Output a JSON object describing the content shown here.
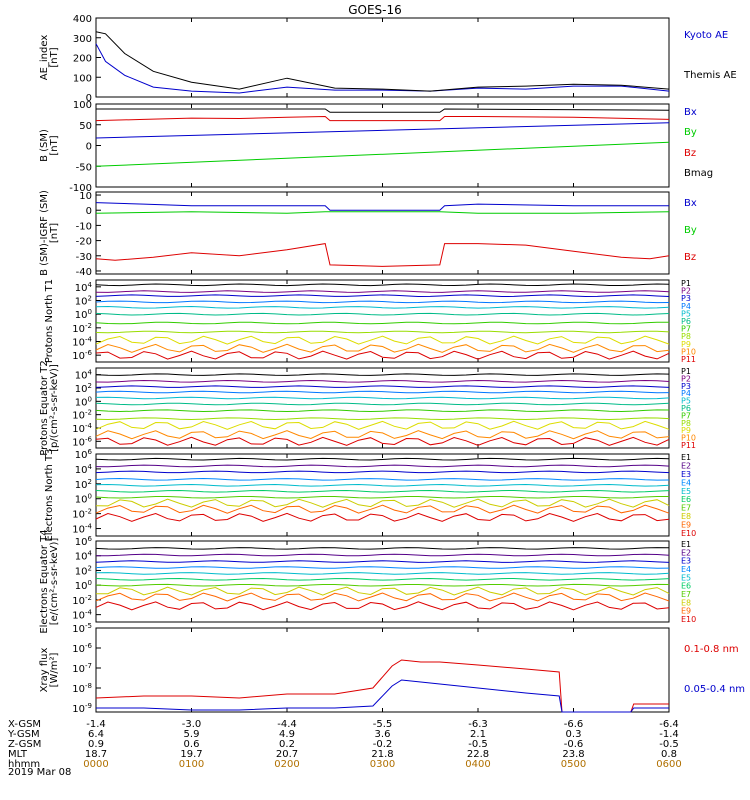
{
  "title": "GOES-16",
  "x_ticks": [
    "0000",
    "0100",
    "0200",
    "0300",
    "0400",
    "0500",
    "0600"
  ],
  "date_label": "2019 Mar 08",
  "ephemeris": {
    "rows": [
      {
        "label": "X-GSM",
        "values": [
          "-1.4",
          "-3.0",
          "-4.4",
          "-5.5",
          "-6.3",
          "-6.6",
          "-6.4"
        ]
      },
      {
        "label": "Y-GSM",
        "values": [
          "6.4",
          "5.9",
          "4.9",
          "3.6",
          "2.1",
          "0.3",
          "-1.4"
        ]
      },
      {
        "label": "Z-GSM",
        "values": [
          "0.9",
          "0.6",
          "0.2",
          "-0.2",
          "-0.5",
          "-0.6",
          "-0.5"
        ]
      },
      {
        "label": "MLT",
        "values": [
          "18.7",
          "19.7",
          "20.7",
          "21.8",
          "22.8",
          "23.8",
          "0.8"
        ]
      },
      {
        "label": "hhmm",
        "values": [
          "0000",
          "0100",
          "0200",
          "0300",
          "0400",
          "0500",
          "0600"
        ]
      }
    ]
  },
  "colors": {
    "P1": "#000000",
    "P2": "#7a0080",
    "P3": "#0000cc",
    "P4": "#0077ff",
    "P5": "#00bbcc",
    "P6": "#00bb88",
    "P7": "#33cc00",
    "P8": "#99dd00",
    "P9": "#dddd00",
    "P10": "#ff8800",
    "P11": "#dd0000",
    "E1": "#000000",
    "E2": "#550088",
    "E3": "#0000cc",
    "E4": "#0088ff",
    "E5": "#00bbcc",
    "E6": "#00cc66",
    "E7": "#55cc00",
    "E8": "#cccc00",
    "E9": "#ff6600",
    "E10": "#dd0000"
  },
  "chart_data": [
    {
      "type": "line",
      "panel": "ae",
      "ylabel": "AE_index [nT]",
      "ylim": [
        0,
        400
      ],
      "yticks": [
        "400",
        "300",
        "200",
        "100",
        "0"
      ],
      "series": [
        {
          "name": "Kyoto AE",
          "color": "#0000cc",
          "x": [
            0,
            0.1,
            0.3,
            0.6,
            1.0,
            1.5,
            2.0,
            2.5,
            3.0,
            3.5,
            4.0,
            4.5,
            5.0,
            5.5,
            6.0
          ],
          "y": [
            270,
            180,
            110,
            50,
            30,
            20,
            50,
            35,
            35,
            30,
            45,
            40,
            55,
            55,
            30
          ]
        },
        {
          "name": "Themis AE",
          "color": "#000000",
          "x": [
            0,
            0.1,
            0.3,
            0.6,
            1.0,
            1.5,
            2.0,
            2.5,
            3.0,
            3.5,
            4.0,
            4.5,
            5.0,
            5.5,
            6.0
          ],
          "y": [
            330,
            320,
            220,
            130,
            75,
            40,
            95,
            45,
            40,
            30,
            50,
            55,
            65,
            60,
            40
          ]
        }
      ]
    },
    {
      "type": "line",
      "panel": "bsm",
      "ylabel": "B (SM) [nT]",
      "ylim": [
        -100,
        100
      ],
      "yticks": [
        "100",
        "50",
        "0",
        "-50",
        "-100"
      ],
      "series": [
        {
          "name": "Bx",
          "color": "#0000cc",
          "x": [
            0,
            6
          ],
          "y": [
            18,
            55
          ]
        },
        {
          "name": "By",
          "color": "#00cc00",
          "x": [
            0,
            6
          ],
          "y": [
            -50,
            8
          ]
        },
        {
          "name": "Bz",
          "color": "#dd0000",
          "x": [
            0,
            0.5,
            1,
            1.5,
            2,
            2.4,
            2.45,
            3.6,
            3.65,
            4,
            5,
            6
          ],
          "y": [
            60,
            63,
            66,
            65,
            68,
            70,
            60,
            60,
            70,
            70,
            68,
            63
          ]
        },
        {
          "name": "Bmag",
          "color": "#000000",
          "x": [
            0,
            2.4,
            2.45,
            3.6,
            3.65,
            6
          ],
          "y": [
            88,
            88,
            80,
            80,
            88,
            85
          ]
        }
      ]
    },
    {
      "type": "line",
      "panel": "bdiff",
      "ylabel": "B (SM)-IGRF (SM) [nT]",
      "ylim": [
        -42,
        12
      ],
      "yticks": [
        "10",
        "0",
        "-10",
        "-20",
        "-30",
        "-40"
      ],
      "series": [
        {
          "name": "Bx",
          "color": "#0000cc",
          "x": [
            0,
            0.5,
            1,
            2,
            2.4,
            2.45,
            3.6,
            3.65,
            4,
            5,
            6
          ],
          "y": [
            5,
            4,
            3,
            3,
            3,
            0,
            0,
            3,
            4,
            3,
            3
          ]
        },
        {
          "name": "By",
          "color": "#00cc00",
          "x": [
            0,
            1,
            2,
            2.4,
            3.6,
            4,
            5,
            6
          ],
          "y": [
            -2,
            -1,
            -2,
            -1,
            -1,
            -2,
            -2,
            -1
          ]
        },
        {
          "name": "Bz",
          "color": "#dd0000",
          "x": [
            0,
            0.2,
            0.6,
            1,
            1.5,
            2,
            2.4,
            2.45,
            3.0,
            3.6,
            3.65,
            4,
            4.5,
            5,
            5.5,
            5.8,
            6
          ],
          "y": [
            -32,
            -33,
            -31,
            -28,
            -30,
            -26,
            -22,
            -36,
            -37,
            -36,
            -22,
            -22,
            -23,
            -27,
            -31,
            -32,
            -30
          ]
        }
      ]
    },
    {
      "type": "line",
      "panel": "protons_t1",
      "ylabel": "Protons North T1",
      "log": true,
      "ylim": [
        -7,
        5
      ],
      "yticks": [
        "10^4",
        "10^2",
        "10^0",
        "10^-2",
        "10^-4",
        "10^-6"
      ],
      "series": [
        {
          "name": "P1",
          "log_level": 4.3
        },
        {
          "name": "P2",
          "log_level": 3.3
        },
        {
          "name": "P3",
          "log_level": 2.7
        },
        {
          "name": "P4",
          "log_level": 1.8
        },
        {
          "name": "P5",
          "log_level": 1.0
        },
        {
          "name": "P6",
          "log_level": 0.0
        },
        {
          "name": "P7",
          "log_level": -1.3
        },
        {
          "name": "P8",
          "log_level": -2.6
        },
        {
          "name": "P9",
          "log_level": -3.8
        },
        {
          "name": "P10",
          "log_level": -5.0
        },
        {
          "name": "P11",
          "log_level": -6.0
        }
      ]
    },
    {
      "type": "line",
      "panel": "protons_t2",
      "ylabel": "Protons Equator T2 [p/(cm²-s-sr-keV)]",
      "log": true,
      "ylim": [
        -7,
        5
      ],
      "yticks": [
        "10^4",
        "10^2",
        "10^0",
        "10^-2",
        "10^-4",
        "10^-6"
      ],
      "series": [
        {
          "name": "P1",
          "log_level": 4.0
        },
        {
          "name": "P2",
          "log_level": 3.0
        },
        {
          "name": "P3",
          "log_level": 2.2
        },
        {
          "name": "P4",
          "log_level": 1.4
        },
        {
          "name": "P5",
          "log_level": 0.5
        },
        {
          "name": "P6",
          "log_level": -0.4
        },
        {
          "name": "P7",
          "log_level": -1.4
        },
        {
          "name": "P8",
          "log_level": -2.6
        },
        {
          "name": "P9",
          "log_level": -3.6
        },
        {
          "name": "P10",
          "log_level": -5.0
        },
        {
          "name": "P11",
          "log_level": -6.0
        }
      ]
    },
    {
      "type": "line",
      "panel": "electrons_t3",
      "ylabel": "Electrons North T3",
      "log": true,
      "ylim": [
        -5,
        6
      ],
      "yticks": [
        "10^6",
        "10^4",
        "10^2",
        "10^0",
        "10^-2",
        "10^-4"
      ],
      "series": [
        {
          "name": "E1",
          "log_level": 5.3
        },
        {
          "name": "E2",
          "log_level": 4.4
        },
        {
          "name": "E3",
          "log_level": 3.6
        },
        {
          "name": "E4",
          "log_level": 2.6
        },
        {
          "name": "E5",
          "log_level": 1.8
        },
        {
          "name": "E6",
          "log_level": 1.0
        },
        {
          "name": "E7",
          "log_level": 0.2
        },
        {
          "name": "E8",
          "log_level": -0.6
        },
        {
          "name": "E9",
          "log_level": -1.4
        },
        {
          "name": "E10",
          "log_level": -2.5
        }
      ]
    },
    {
      "type": "line",
      "panel": "electrons_t4",
      "ylabel": "Electrons Equator T4 [e/(cm²-s-sr-keV)]",
      "log": true,
      "ylim": [
        -5,
        6
      ],
      "yticks": [
        "10^6",
        "10^4",
        "10^2",
        "10^0",
        "10^-2",
        "10^-4"
      ],
      "series": [
        {
          "name": "E1",
          "log_level": 5.0
        },
        {
          "name": "E2",
          "log_level": 4.1
        },
        {
          "name": "E3",
          "log_level": 3.2
        },
        {
          "name": "E4",
          "log_level": 2.4
        },
        {
          "name": "E5",
          "log_level": 1.6
        },
        {
          "name": "E6",
          "log_level": 0.8
        },
        {
          "name": "E7",
          "log_level": 0.0
        },
        {
          "name": "E8",
          "log_level": -0.8
        },
        {
          "name": "E9",
          "log_level": -1.6
        },
        {
          "name": "E10",
          "log_level": -2.8
        }
      ]
    },
    {
      "type": "line",
      "panel": "xray",
      "ylabel": "Xray flux [W/m²]",
      "log": true,
      "ylim": [
        -9.2,
        -5
      ],
      "yticks": [
        "10^-5",
        "10^-6",
        "10^-7",
        "10^-8",
        "10^-9"
      ],
      "series": [
        {
          "name": "0.1-0.8 nm",
          "color": "#dd0000",
          "x": [
            0,
            0.5,
            1,
            1.5,
            2,
            2.5,
            2.9,
            3.1,
            3.2,
            3.4,
            3.6,
            4.0,
            4.5,
            4.85,
            4.88,
            5.6,
            5.63,
            6
          ],
          "y": [
            -8.5,
            -8.4,
            -8.4,
            -8.5,
            -8.3,
            -8.3,
            -8.0,
            -6.9,
            -6.6,
            -6.7,
            -6.7,
            -6.85,
            -7.05,
            -7.2,
            -9.2,
            -9.2,
            -8.8,
            -8.8
          ]
        },
        {
          "name": "0.05-0.4 nm",
          "color": "#0000cc",
          "x": [
            0,
            0.5,
            1,
            1.5,
            2,
            2.5,
            2.9,
            3.1,
            3.2,
            3.4,
            3.6,
            4.0,
            4.5,
            4.85,
            4.88,
            5.6,
            5.63,
            6
          ],
          "y": [
            -9.0,
            -9.0,
            -9.1,
            -9.1,
            -9.0,
            -9.0,
            -8.9,
            -7.9,
            -7.6,
            -7.7,
            -7.8,
            -8.0,
            -8.25,
            -8.4,
            -9.2,
            -9.2,
            -9.0,
            -9.0
          ]
        }
      ]
    }
  ]
}
